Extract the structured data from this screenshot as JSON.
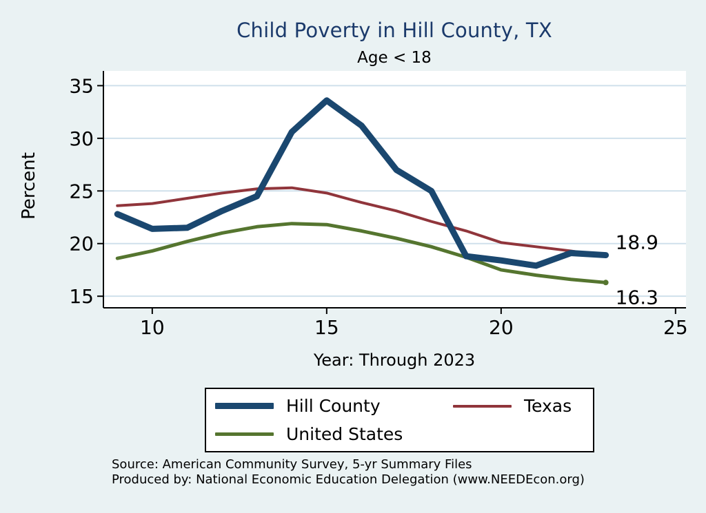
{
  "page": {
    "title": "Child Poverty in Hill County, TX",
    "subtitle": "Age < 18"
  },
  "axes": {
    "y_label": "Percent",
    "x_label": "Year: Through 2023"
  },
  "footer": {
    "source_line1": "Source: American Community Survey, 5-yr Summary Files",
    "source_line2": "Produced by: National Economic Education Delegation (www.NEEDEcon.org)"
  },
  "colors": {
    "background": "#eaf2f3",
    "plot_bg": "#ffffff",
    "grid": "#cfe0eb",
    "axis": "#000000",
    "title": "#1b3a6b",
    "hill_county": "#1a476f",
    "texas": "#90353b",
    "united_states": "#55752f"
  },
  "chart_data": {
    "type": "line",
    "title": "Child Poverty in Hill County, TX",
    "subtitle": "Age < 18",
    "xlabel": "Year: Through 2023",
    "ylabel": "Percent",
    "x": [
      9,
      10,
      11,
      12,
      13,
      14,
      15,
      16,
      17,
      18,
      19,
      20,
      21,
      22,
      23
    ],
    "series": [
      {
        "name": "Hill County",
        "color": "#1a476f",
        "width": 9,
        "values": [
          22.8,
          21.4,
          21.5,
          23.1,
          24.5,
          30.6,
          33.6,
          31.2,
          27.0,
          25.0,
          18.8,
          18.4,
          17.9,
          19.1,
          18.9
        ]
      },
      {
        "name": "Texas",
        "color": "#90353b",
        "width": 4,
        "values": [
          23.6,
          23.8,
          24.3,
          24.8,
          25.2,
          25.3,
          24.8,
          23.9,
          23.1,
          22.1,
          21.2,
          20.1,
          19.7,
          19.3,
          18.8
        ]
      },
      {
        "name": "United States",
        "color": "#55752f",
        "width": 5,
        "values": [
          18.6,
          19.3,
          20.2,
          21.0,
          21.6,
          21.9,
          21.8,
          21.2,
          20.5,
          19.7,
          18.7,
          17.5,
          17.0,
          16.6,
          16.3
        ],
        "end_dot": true
      }
    ],
    "xticks": [
      10,
      15,
      20,
      25
    ],
    "yticks": [
      15,
      20,
      25,
      30,
      35
    ],
    "xlim": [
      8.6,
      25.3
    ],
    "ylim": [
      13.9,
      36.4
    ],
    "grid": true,
    "legend_position": "bottom",
    "end_labels": [
      {
        "text": "18.9",
        "series": 0,
        "dy": -19
      },
      {
        "text": "16.3",
        "series": 2,
        "dy": 21
      }
    ]
  }
}
